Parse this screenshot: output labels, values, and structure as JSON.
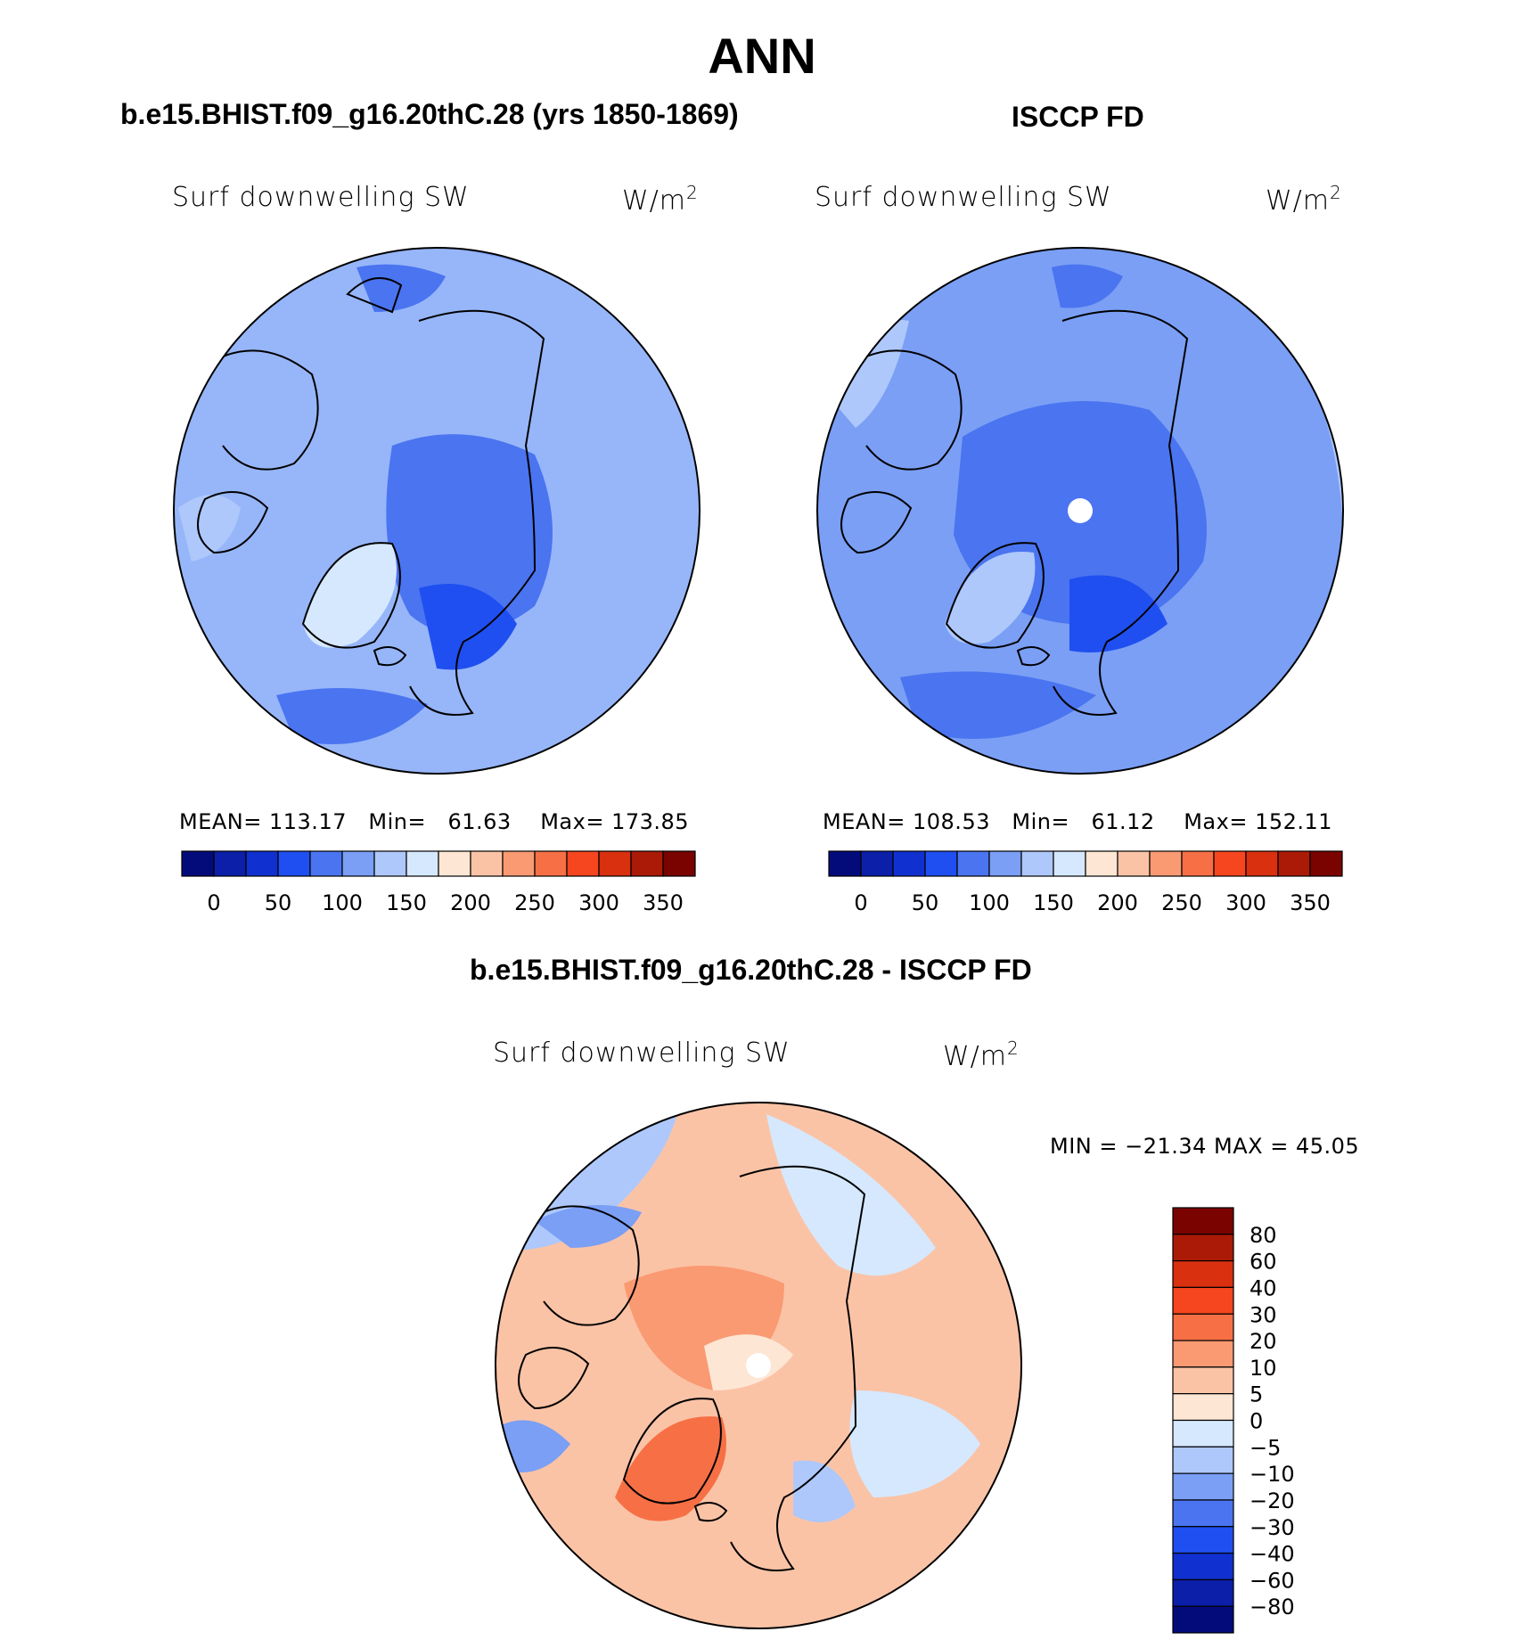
{
  "figure": {
    "title": "ANN"
  },
  "panels": [
    {
      "title": "b.e15.BHIST.f09_g16.20thC.28 (yrs 1850-1869)",
      "variable": "Surf downwelling SW",
      "units": "W/m",
      "units_exp": "2",
      "stats": {
        "mean_label": "MEAN=",
        "mean": "113.17",
        "min_label": "Min=",
        "min": "61.63",
        "max_label": "Max=",
        "max": "173.85"
      }
    },
    {
      "title": "ISCCP FD",
      "variable": "Surf downwelling SW",
      "units": "W/m",
      "units_exp": "2",
      "stats": {
        "mean_label": "MEAN=",
        "mean": "108.53",
        "min_label": "Min=",
        "min": "61.12",
        "max_label": "Max=",
        "max": "152.11"
      }
    },
    {
      "title": "b.e15.BHIST.f09_g16.20thC.28 - ISCCP FD",
      "variable": "Surf downwelling SW",
      "units": "W/m",
      "units_exp": "2",
      "stats_text": "MIN = −21.34 MAX =   45.05"
    }
  ],
  "chart_data": [
    {
      "type": "heatmap",
      "projection": "north polar stereographic",
      "title": "b.e15.BHIST.f09_g16.20thC.28 (yrs 1850-1869)",
      "variable": "Surf downwelling SW",
      "units": "W/m2",
      "mean": 113.17,
      "min": 61.63,
      "max": 173.85,
      "colorbar": {
        "orientation": "horizontal",
        "tick_labels": [
          "0",
          "50",
          "100",
          "150",
          "200",
          "250",
          "300",
          "350"
        ],
        "colors": [
          "#030b7a",
          "#0b1fa8",
          "#1031cf",
          "#1f4ff0",
          "#4a74f0",
          "#7a9ff5",
          "#aec8fb",
          "#d6e8fe",
          "#fde6d4",
          "#fbc3a6",
          "#f99a73",
          "#f76f45",
          "#f5461f",
          "#d9300f",
          "#ab1a06",
          "#7a0300"
        ]
      }
    },
    {
      "type": "heatmap",
      "projection": "north polar stereographic",
      "title": "ISCCP FD",
      "variable": "Surf downwelling SW",
      "units": "W/m2",
      "mean": 108.53,
      "min": 61.12,
      "max": 152.11,
      "colorbar": {
        "orientation": "horizontal",
        "tick_labels": [
          "0",
          "50",
          "100",
          "150",
          "200",
          "250",
          "300",
          "350"
        ],
        "colors": [
          "#030b7a",
          "#0b1fa8",
          "#1031cf",
          "#1f4ff0",
          "#4a74f0",
          "#7a9ff5",
          "#aec8fb",
          "#d6e8fe",
          "#fde6d4",
          "#fbc3a6",
          "#f99a73",
          "#f76f45",
          "#f5461f",
          "#d9300f",
          "#ab1a06",
          "#7a0300"
        ]
      }
    },
    {
      "type": "heatmap",
      "projection": "north polar stereographic",
      "title": "b.e15.BHIST.f09_g16.20thC.28 - ISCCP FD",
      "variable": "Surf downwelling SW",
      "units": "W/m2",
      "min": -21.34,
      "max": 45.05,
      "colorbar": {
        "orientation": "vertical",
        "tick_labels": [
          "80",
          "60",
          "40",
          "30",
          "20",
          "10",
          "5",
          "0",
          "−5",
          "−10",
          "−20",
          "−30",
          "−40",
          "−60",
          "−80"
        ],
        "colors": [
          "#7a0300",
          "#ab1a06",
          "#d9300f",
          "#f5461f",
          "#f76f45",
          "#f99a73",
          "#fbc3a6",
          "#fde6d4",
          "#d6e8fe",
          "#aec8fb",
          "#7a9ff5",
          "#4a74f0",
          "#1f4ff0",
          "#1031cf",
          "#0b1fa8",
          "#030b7a"
        ]
      }
    }
  ]
}
